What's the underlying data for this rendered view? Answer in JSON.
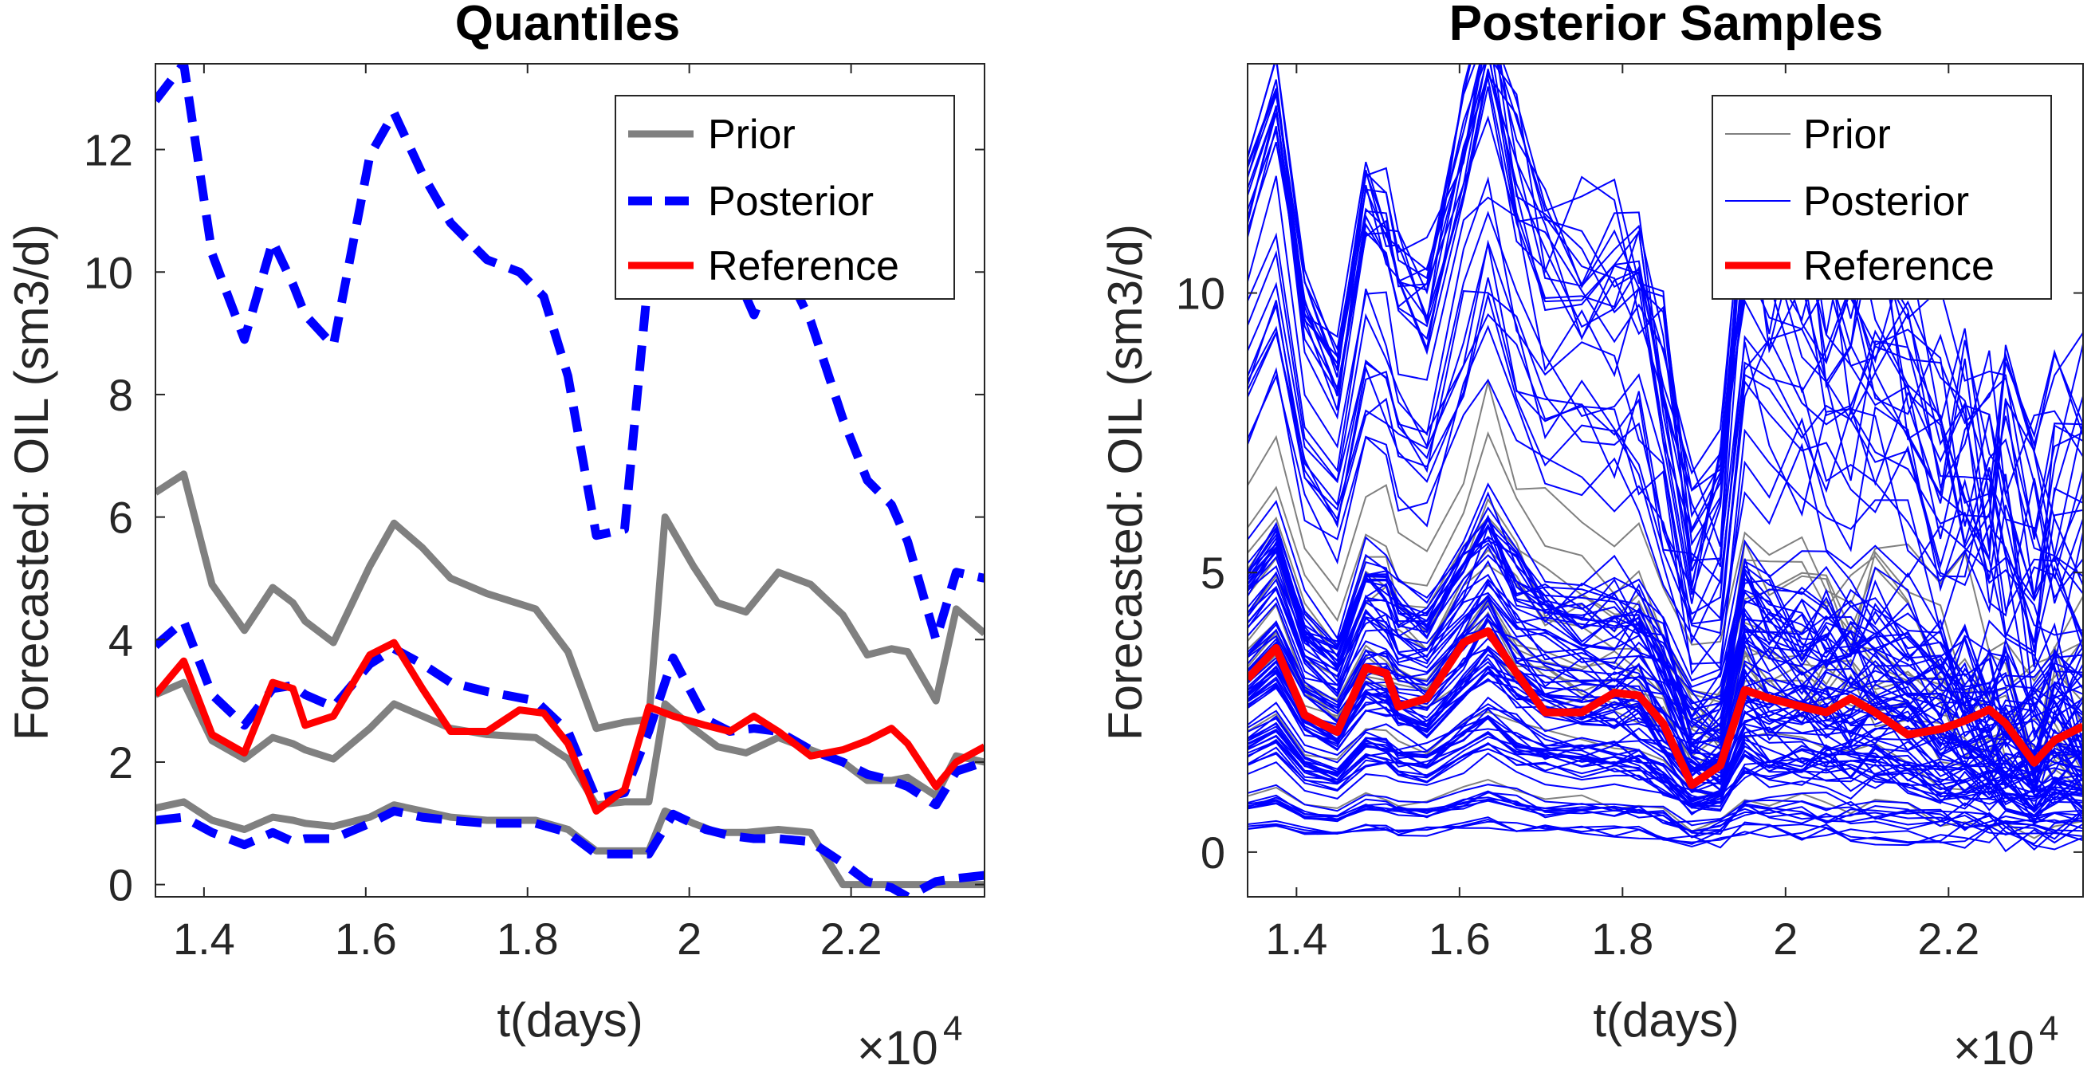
{
  "chart_data": [
    {
      "type": "line",
      "title": "Quantiles",
      "xlabel": "t(days)",
      "ylabel": "Forecasted: OIL (sm3/d)",
      "x_exponent_label": "×10",
      "x_exponent_power": "4",
      "xlim": [
        13400,
        23650
      ],
      "ylim": [
        -0.2,
        13.4
      ],
      "xticks": [
        14000,
        16000,
        18000,
        20000,
        22000
      ],
      "xtick_labels": [
        "1.4",
        "1.6",
        "1.8",
        "2",
        "2.2"
      ],
      "yticks": [
        0,
        2,
        4,
        6,
        8,
        10,
        12
      ],
      "ytick_labels": [
        "0",
        "2",
        "4",
        "6",
        "8",
        "10",
        "12"
      ],
      "grid": false,
      "legend_position": "top-right",
      "legend": [
        "Prior",
        "Posterior",
        "Reference"
      ],
      "series": [
        {
          "name": "Prior",
          "color": "#808080",
          "style": "solid",
          "x": [
            13400,
            13750,
            14100,
            14500,
            14850,
            15100,
            15250,
            15600,
            16050,
            16350,
            16700,
            17050,
            17500,
            18100,
            18500,
            18850,
            19200,
            19500,
            19700,
            20050,
            20350,
            20700,
            21100,
            21500,
            21900,
            22200,
            22500,
            22700,
            23050,
            23300,
            23650
          ],
          "y": [
            6.4,
            6.7,
            4.9,
            4.15,
            4.85,
            4.6,
            4.3,
            3.95,
            5.2,
            5.9,
            5.5,
            5.0,
            4.75,
            4.5,
            3.8,
            2.55,
            2.65,
            2.7,
            6.0,
            5.2,
            4.6,
            4.45,
            5.1,
            4.9,
            4.4,
            3.75,
            3.85,
            3.8,
            3.0,
            4.5,
            4.1
          ]
        },
        {
          "name": "Prior",
          "color": "#808080",
          "style": "solid",
          "x": [
            13400,
            13750,
            14100,
            14500,
            14850,
            15100,
            15250,
            15600,
            16050,
            16350,
            16700,
            17050,
            17500,
            18100,
            18500,
            18850,
            19200,
            19500,
            19700,
            20050,
            20350,
            20700,
            21100,
            21500,
            21900,
            22200,
            22500,
            22700,
            23050,
            23300,
            23650
          ],
          "y": [
            3.1,
            3.3,
            2.35,
            2.05,
            2.4,
            2.3,
            2.2,
            2.05,
            2.55,
            2.95,
            2.75,
            2.55,
            2.45,
            2.4,
            2.05,
            1.3,
            1.35,
            1.35,
            2.95,
            2.55,
            2.25,
            2.15,
            2.4,
            2.2,
            2.0,
            1.7,
            1.7,
            1.75,
            1.45,
            2.1,
            2.0
          ]
        },
        {
          "name": "Prior",
          "color": "#808080",
          "style": "solid",
          "x": [
            13400,
            13750,
            14100,
            14500,
            14850,
            15100,
            15250,
            15600,
            16050,
            16350,
            16700,
            17050,
            17500,
            18100,
            18500,
            18850,
            19200,
            19500,
            19700,
            20050,
            20350,
            20700,
            21100,
            21500,
            21900,
            22200,
            22500,
            22700,
            23050,
            23300,
            23650
          ],
          "y": [
            1.25,
            1.35,
            1.05,
            0.9,
            1.1,
            1.05,
            1.0,
            0.95,
            1.1,
            1.3,
            1.2,
            1.1,
            1.05,
            1.05,
            0.9,
            0.55,
            0.55,
            0.55,
            1.2,
            1.0,
            0.85,
            0.85,
            0.9,
            0.85,
            0.0,
            0.0,
            0.0,
            0.0,
            0.0,
            0.0,
            0.0
          ]
        },
        {
          "name": "Posterior",
          "color": "#0000ff",
          "style": "dashed",
          "x": [
            13400,
            13750,
            14100,
            14500,
            14850,
            15100,
            15250,
            15600,
            16050,
            16350,
            16700,
            17050,
            17500,
            17900,
            18200,
            18500,
            18850,
            19200,
            19500,
            19800,
            20200,
            20500,
            20800,
            21100,
            21500,
            21900,
            22200,
            22500,
            22700,
            23050,
            23300,
            23650
          ],
          "y": [
            12.8,
            13.4,
            10.3,
            8.9,
            10.5,
            9.8,
            9.3,
            8.8,
            11.9,
            12.6,
            11.6,
            10.8,
            10.2,
            10.0,
            9.6,
            8.3,
            5.7,
            5.8,
            10.0,
            10.5,
            10.3,
            10.2,
            9.3,
            10.3,
            9.2,
            7.6,
            6.6,
            6.2,
            5.6,
            4.0,
            5.1,
            5.0
          ]
        },
        {
          "name": "Posterior",
          "color": "#0000ff",
          "style": "dashed",
          "x": [
            13400,
            13750,
            14100,
            14500,
            14850,
            15100,
            15250,
            15600,
            16050,
            16350,
            16700,
            17050,
            17500,
            18100,
            18500,
            18850,
            19200,
            19500,
            19800,
            20200,
            20500,
            20800,
            21100,
            21500,
            21900,
            22200,
            22500,
            22700,
            23050,
            23300,
            23650
          ],
          "y": [
            3.9,
            4.3,
            3.1,
            2.6,
            3.2,
            3.25,
            3.1,
            2.9,
            3.6,
            3.85,
            3.6,
            3.3,
            3.15,
            3.0,
            2.5,
            1.4,
            1.5,
            2.5,
            3.7,
            2.7,
            2.5,
            2.55,
            2.5,
            2.2,
            2.0,
            1.8,
            1.7,
            1.6,
            1.3,
            1.85,
            2.0
          ]
        },
        {
          "name": "Posterior",
          "color": "#0000ff",
          "style": "dashed",
          "x": [
            13400,
            13750,
            14100,
            14500,
            14850,
            15100,
            15250,
            15600,
            16050,
            16350,
            16700,
            17050,
            17500,
            18100,
            18500,
            18850,
            19200,
            19500,
            19800,
            20200,
            20500,
            20800,
            21100,
            21500,
            21900,
            22200,
            22500,
            22700,
            23050,
            23300,
            23650
          ],
          "y": [
            1.05,
            1.1,
            0.85,
            0.65,
            0.85,
            0.7,
            0.75,
            0.75,
            1.0,
            1.2,
            1.1,
            1.05,
            1.0,
            1.0,
            0.85,
            0.5,
            0.5,
            0.5,
            1.15,
            0.9,
            0.8,
            0.75,
            0.75,
            0.7,
            0.35,
            0.05,
            -0.05,
            -0.2,
            0.05,
            0.1,
            0.15
          ]
        },
        {
          "name": "Reference",
          "color": "#ff0000",
          "style": "solid",
          "x": [
            13400,
            13750,
            14100,
            14500,
            14850,
            15100,
            15250,
            15600,
            16050,
            16350,
            16700,
            17050,
            17500,
            17900,
            18200,
            18500,
            18850,
            19200,
            19500,
            19800,
            20200,
            20500,
            20800,
            21100,
            21500,
            21900,
            22200,
            22500,
            22700,
            23050,
            23300,
            23650
          ],
          "y": [
            3.1,
            3.65,
            2.45,
            2.15,
            3.3,
            3.2,
            2.6,
            2.75,
            3.75,
            3.95,
            3.2,
            2.5,
            2.5,
            2.85,
            2.8,
            2.3,
            1.2,
            1.55,
            2.9,
            2.75,
            2.6,
            2.5,
            2.75,
            2.5,
            2.1,
            2.2,
            2.35,
            2.55,
            2.3,
            1.6,
            2.0,
            2.25
          ]
        }
      ]
    },
    {
      "type": "line",
      "title": "Posterior Samples",
      "xlabel": "t(days)",
      "ylabel": "Forecasted: OIL (sm3/d)",
      "x_exponent_label": "×10",
      "x_exponent_power": "4",
      "xlim": [
        13400,
        23650
      ],
      "ylim": [
        -0.8,
        14.1
      ],
      "xticks": [
        14000,
        16000,
        18000,
        20000,
        22000
      ],
      "xtick_labels": [
        "1.4",
        "1.6",
        "1.8",
        "2",
        "2.2"
      ],
      "yticks": [
        0,
        5,
        10
      ],
      "ytick_labels": [
        "0",
        "5",
        "10"
      ],
      "grid": false,
      "legend_position": "top-right",
      "legend": [
        "Prior",
        "Posterior",
        "Reference"
      ],
      "sample_time_points": [
        13400,
        13750,
        14100,
        14500,
        14850,
        15100,
        15250,
        15600,
        16050,
        16350,
        16700,
        17050,
        17500,
        17900,
        18200,
        18500,
        18850,
        19200,
        19500,
        19800,
        20200,
        20500,
        20800,
        21100,
        21500,
        21900,
        22200,
        22500,
        22700,
        23050,
        23300,
        23650
      ],
      "sample_count_prior": 14,
      "sample_count_posterior": 110,
      "series": [
        {
          "name": "Reference",
          "color": "#ff0000",
          "style": "solid",
          "x": [
            13400,
            13750,
            14100,
            14500,
            14850,
            15100,
            15250,
            15600,
            16050,
            16350,
            16700,
            17050,
            17500,
            17900,
            18200,
            18500,
            18850,
            19200,
            19500,
            19800,
            20200,
            20500,
            20800,
            21100,
            21500,
            21900,
            22200,
            22500,
            22700,
            23050,
            23300,
            23650
          ],
          "y": [
            3.1,
            3.65,
            2.45,
            2.15,
            3.3,
            3.2,
            2.6,
            2.75,
            3.75,
            3.95,
            3.2,
            2.5,
            2.5,
            2.85,
            2.8,
            2.3,
            1.2,
            1.55,
            2.9,
            2.75,
            2.6,
            2.5,
            2.75,
            2.5,
            2.1,
            2.2,
            2.35,
            2.55,
            2.3,
            1.6,
            2.0,
            2.25
          ]
        }
      ]
    }
  ]
}
